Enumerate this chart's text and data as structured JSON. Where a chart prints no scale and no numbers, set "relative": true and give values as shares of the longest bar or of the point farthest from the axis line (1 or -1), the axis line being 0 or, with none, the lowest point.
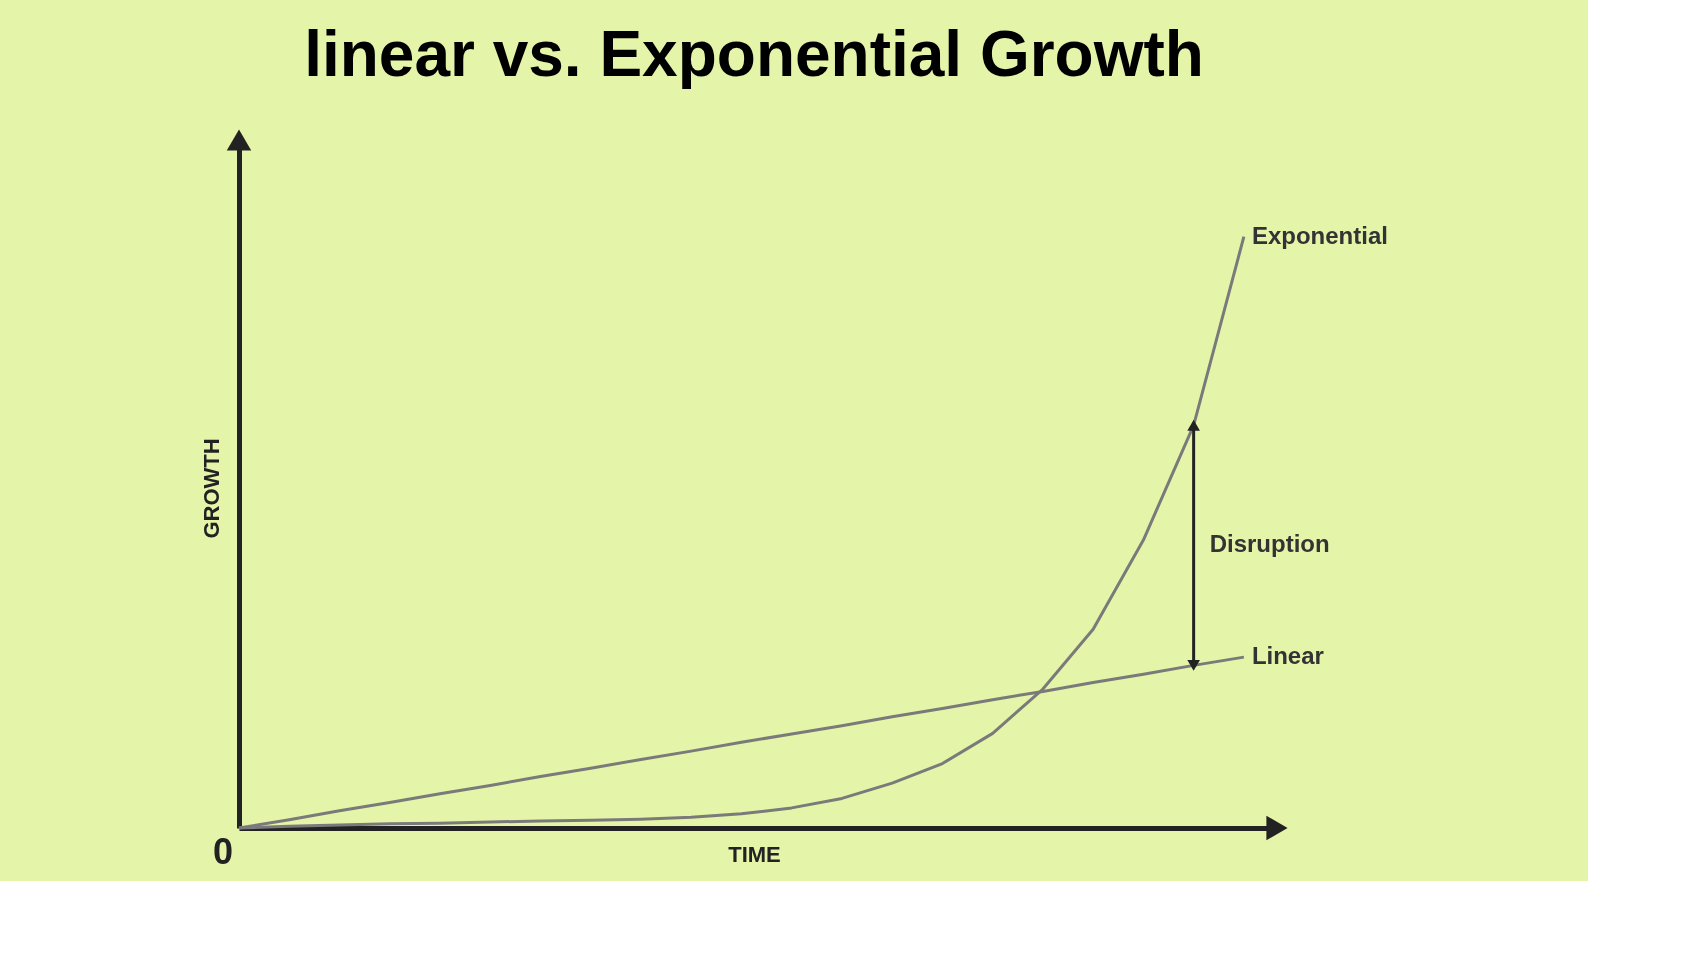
{
  "chart_data": {
    "type": "line",
    "title": "linear vs. Exponential Growth",
    "xlabel": "TIME",
    "ylabel": "GROWTH",
    "relative": true,
    "tick_labels": false,
    "grid": false,
    "legend": false,
    "marker": "none",
    "line_style": "solid",
    "categories": [
      null,
      null,
      null,
      null,
      null,
      null,
      null,
      null,
      null,
      null,
      null,
      null,
      null,
      null,
      null,
      null,
      null,
      null,
      null,
      null,
      null
    ],
    "series": [
      {
        "name": "Exponential",
        "color": "#7a7a7a",
        "values": [
          0,
          0.003,
          0.005,
          0.007,
          0.008,
          0.01,
          0.012,
          0.013,
          0.015,
          0.018,
          0.024,
          0.034,
          0.05,
          0.076,
          0.109,
          0.16,
          0.235,
          0.336,
          0.487,
          0.681,
          1
        ]
      },
      {
        "name": "Linear",
        "color": "#7a7a7a",
        "values": [
          0,
          0.014,
          0.029,
          0.043,
          0.058,
          0.072,
          0.087,
          0.101,
          0.116,
          0.13,
          0.145,
          0.159,
          0.173,
          0.188,
          0.202,
          0.217,
          0.231,
          0.246,
          0.26,
          0.275,
          0.289
        ]
      }
    ],
    "annotations": [
      "Disruption",
      "0"
    ]
  }
}
